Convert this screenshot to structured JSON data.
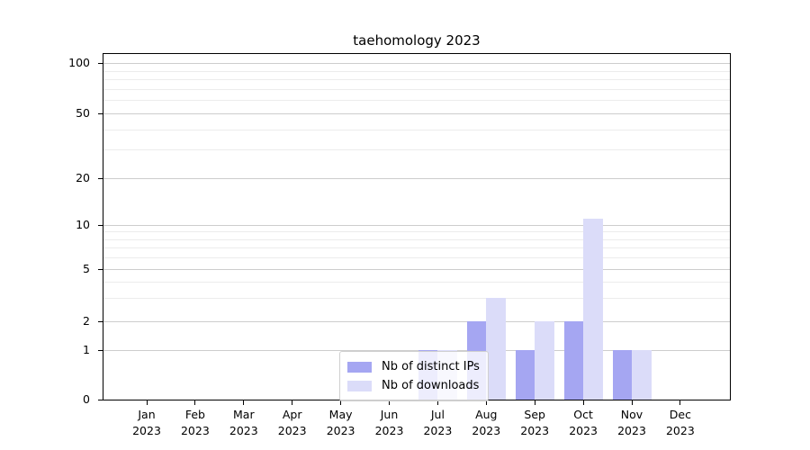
{
  "chart_data": {
    "type": "bar",
    "title": "taehomology 2023",
    "categories": [
      "Jan 2023",
      "Feb 2023",
      "Mar 2023",
      "Apr 2023",
      "May 2023",
      "Jun 2023",
      "Jul 2023",
      "Aug 2023",
      "Sep 2023",
      "Oct 2023",
      "Nov 2023",
      "Dec 2023"
    ],
    "series": [
      {
        "name": "Nb of distinct IPs",
        "color": "#a5a6f2",
        "values": [
          0,
          0,
          0,
          0,
          0,
          0,
          1,
          2,
          1,
          2,
          1,
          0
        ]
      },
      {
        "name": "Nb of downloads",
        "color": "#dbdcf9",
        "values": [
          0,
          0,
          0,
          0,
          0,
          0,
          1,
          3,
          2,
          11,
          1,
          0
        ]
      }
    ],
    "yticks": [
      0,
      1,
      2,
      5,
      10,
      20,
      50,
      100
    ],
    "xlabel": "",
    "ylabel": "",
    "ylim": [
      0,
      114
    ],
    "scale": "symlog",
    "grid": true,
    "legend_position": "lower center"
  }
}
